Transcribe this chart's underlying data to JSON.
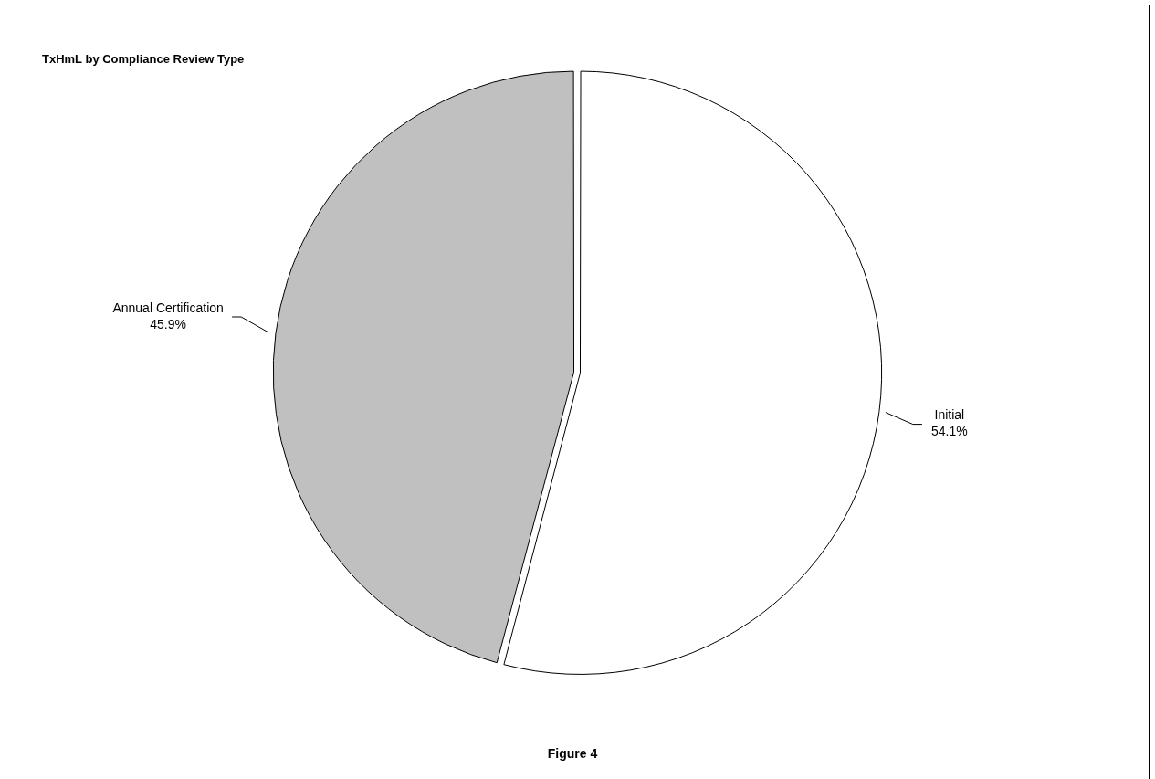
{
  "chart_data": {
    "type": "pie",
    "title": "TxHmL by Compliance Review Type",
    "categories": [
      "Initial",
      "Annual Certification"
    ],
    "values": [
      54.1,
      45.9
    ],
    "value_labels": [
      "54.1%",
      "45.9%"
    ],
    "colors": [
      "#ffffff",
      "#c0c0c0"
    ],
    "legend": false,
    "annotations": [
      "Figure 4"
    ]
  }
}
